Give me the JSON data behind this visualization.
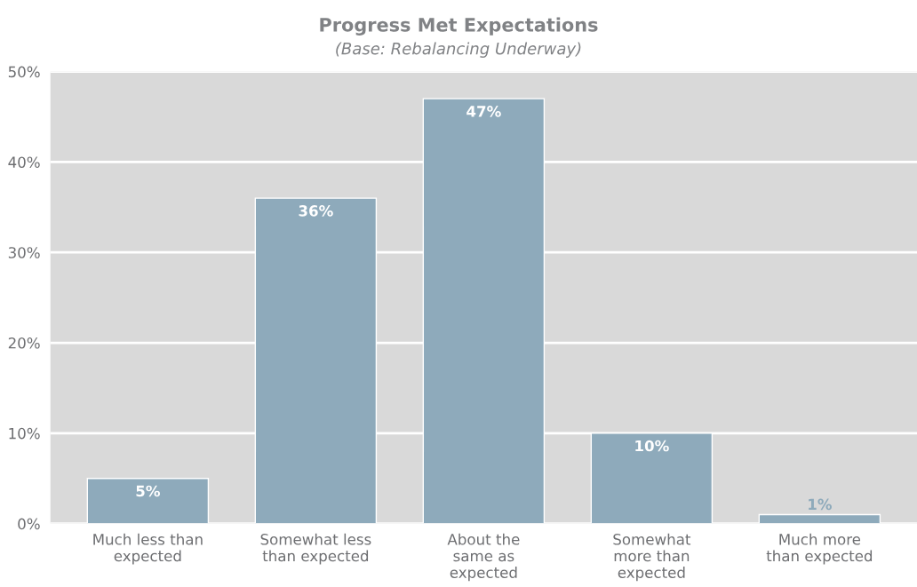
{
  "chart_data": {
    "type": "bar",
    "title": "Progress Met Expectations",
    "subtitle": "(Base: Rebalancing Underway)",
    "categories": [
      "Much less than\nexpected",
      "Somewhat less\nthan expected",
      "About the\nsame as\nexpected",
      "Somewhat\nmore than\nexpected",
      "Much more\nthan expected"
    ],
    "values": [
      5,
      36,
      47,
      10,
      1
    ],
    "value_labels": [
      "5%",
      "36%",
      "47%",
      "10%",
      "1%"
    ],
    "color": "#8eaabb",
    "ylim": [
      0,
      50
    ],
    "yticks": [
      {
        "value": 0,
        "label": "0%"
      },
      {
        "value": 10,
        "label": "10%"
      },
      {
        "value": 20,
        "label": "20%"
      },
      {
        "value": 30,
        "label": "30%"
      },
      {
        "value": 40,
        "label": "40%"
      },
      {
        "value": 50,
        "label": "50%"
      }
    ],
    "grid": "y"
  }
}
